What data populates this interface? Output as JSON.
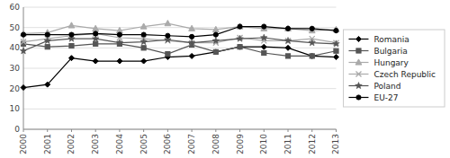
{
  "chart_data": {
    "type": "line",
    "x": [
      2000,
      2001,
      2002,
      2003,
      2004,
      2005,
      2006,
      2007,
      2008,
      2009,
      2010,
      2011,
      2012,
      2013
    ],
    "series": [
      {
        "name": "Romania",
        "color": "#000000",
        "marker": "diamond",
        "line_style": "solid",
        "values": [
          20.5,
          22.0,
          35.0,
          33.5,
          33.5,
          33.5,
          35.5,
          36.0,
          38.0,
          40.5,
          40.5,
          40.0,
          36.0,
          35.5
        ]
      },
      {
        "name": "Bulgaria",
        "color": "#555555",
        "marker": "square",
        "line_style": "solid",
        "values": [
          42.0,
          40.5,
          41.0,
          42.0,
          42.0,
          40.0,
          37.0,
          41.5,
          38.0,
          40.5,
          37.5,
          36.0,
          36.0,
          38.5
        ]
      },
      {
        "name": "Hungary",
        "color": "#aaaaaa",
        "marker": "triangle",
        "line_style": "solid",
        "values": [
          47.0,
          47.5,
          51.0,
          49.5,
          48.5,
          50.5,
          52.0,
          49.5,
          49.0,
          50.5,
          49.5,
          49.5,
          48.5,
          49.0
        ]
      },
      {
        "name": "Czech Republic",
        "color": "#aaaaaa",
        "marker": "cross",
        "line_style": "solid",
        "values": [
          43.0,
          44.5,
          46.0,
          47.0,
          45.0,
          44.5,
          43.5,
          42.5,
          42.5,
          45.0,
          43.5,
          43.5,
          44.5,
          42.5
        ]
      },
      {
        "name": "Poland",
        "color": "#555555",
        "marker": "star",
        "line_style": "solid",
        "values": [
          38.5,
          43.5,
          44.5,
          44.5,
          42.5,
          43.0,
          44.0,
          42.5,
          43.5,
          44.5,
          45.0,
          43.5,
          42.5,
          42.0
        ]
      },
      {
        "name": "EU-27",
        "color": "#000000",
        "marker": "circle",
        "line_style": "solid",
        "values": [
          46.5,
          46.5,
          46.5,
          47.0,
          46.5,
          46.5,
          46.0,
          45.5,
          46.5,
          50.5,
          50.5,
          49.5,
          49.5,
          48.5
        ]
      }
    ],
    "xlim": [
      2000,
      2013
    ],
    "xticks": [
      2000,
      2001,
      2002,
      2003,
      2004,
      2005,
      2006,
      2007,
      2008,
      2009,
      2010,
      2011,
      2012,
      2013
    ],
    "ylim": [
      0,
      60
    ],
    "yticks": [
      0,
      10,
      20,
      30,
      40,
      50,
      60
    ],
    "grid": "y",
    "legend": "right"
  }
}
